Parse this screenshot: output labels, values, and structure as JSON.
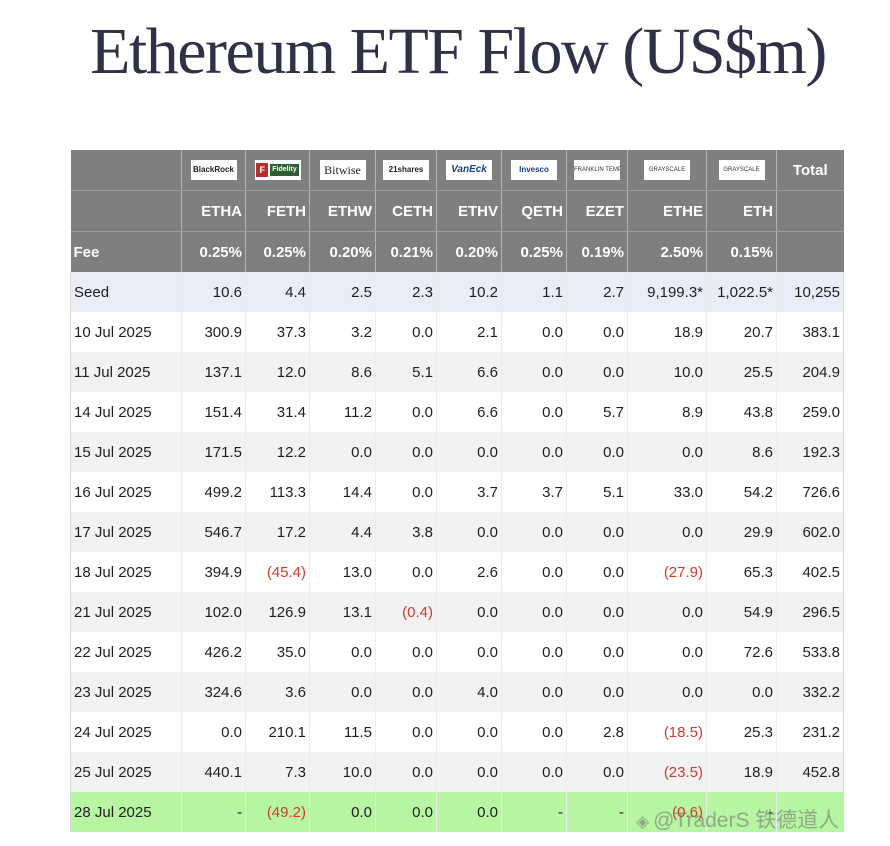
{
  "title": "Ethereum ETF Flow (US$m)",
  "issuers": [
    "BlackRock",
    "Fidelity",
    "Bitwise",
    "21shares",
    "VanEck",
    "Invesco",
    "FRANKLIN TEMPLETON",
    "GRAYSCALE",
    "GRAYSCALE"
  ],
  "total_label": "Total",
  "tickers": [
    "ETHA",
    "FETH",
    "ETHW",
    "CETH",
    "ETHV",
    "QETH",
    "EZET",
    "ETHE",
    "ETH"
  ],
  "fee_label": "Fee",
  "fees": [
    "0.25%",
    "0.25%",
    "0.20%",
    "0.21%",
    "0.20%",
    "0.25%",
    "0.19%",
    "2.50%",
    "0.15%"
  ],
  "rows": [
    {
      "label": "Seed",
      "values": [
        "10.6",
        "4.4",
        "2.5",
        "2.3",
        "10.2",
        "1.1",
        "2.7",
        "9,199.3*",
        "1,022.5*"
      ],
      "total": "10,255"
    },
    {
      "label": "10 Jul 2025",
      "values": [
        "300.9",
        "37.3",
        "3.2",
        "0.0",
        "2.1",
        "0.0",
        "0.0",
        "18.9",
        "20.7"
      ],
      "total": "383.1"
    },
    {
      "label": "11 Jul 2025",
      "values": [
        "137.1",
        "12.0",
        "8.6",
        "5.1",
        "6.6",
        "0.0",
        "0.0",
        "10.0",
        "25.5"
      ],
      "total": "204.9"
    },
    {
      "label": "14 Jul 2025",
      "values": [
        "151.4",
        "31.4",
        "11.2",
        "0.0",
        "6.6",
        "0.0",
        "5.7",
        "8.9",
        "43.8"
      ],
      "total": "259.0"
    },
    {
      "label": "15 Jul 2025",
      "values": [
        "171.5",
        "12.2",
        "0.0",
        "0.0",
        "0.0",
        "0.0",
        "0.0",
        "0.0",
        "8.6"
      ],
      "total": "192.3"
    },
    {
      "label": "16 Jul 2025",
      "values": [
        "499.2",
        "113.3",
        "14.4",
        "0.0",
        "3.7",
        "3.7",
        "5.1",
        "33.0",
        "54.2"
      ],
      "total": "726.6"
    },
    {
      "label": "17 Jul 2025",
      "values": [
        "546.7",
        "17.2",
        "4.4",
        "3.8",
        "0.0",
        "0.0",
        "0.0",
        "0.0",
        "29.9"
      ],
      "total": "602.0"
    },
    {
      "label": "18 Jul 2025",
      "values": [
        "394.9",
        "(45.4)",
        "13.0",
        "0.0",
        "2.6",
        "0.0",
        "0.0",
        "(27.9)",
        "65.3"
      ],
      "total": "402.5"
    },
    {
      "label": "21 Jul 2025",
      "values": [
        "102.0",
        "126.9",
        "13.1",
        "(0.4)",
        "0.0",
        "0.0",
        "0.0",
        "0.0",
        "54.9"
      ],
      "total": "296.5"
    },
    {
      "label": "22 Jul 2025",
      "values": [
        "426.2",
        "35.0",
        "0.0",
        "0.0",
        "0.0",
        "0.0",
        "0.0",
        "0.0",
        "72.6"
      ],
      "total": "533.8"
    },
    {
      "label": "23 Jul 2025",
      "values": [
        "324.6",
        "3.6",
        "0.0",
        "0.0",
        "4.0",
        "0.0",
        "0.0",
        "0.0",
        "0.0"
      ],
      "total": "332.2"
    },
    {
      "label": "24 Jul 2025",
      "values": [
        "0.0",
        "210.1",
        "11.5",
        "0.0",
        "0.0",
        "0.0",
        "2.8",
        "(18.5)",
        "25.3"
      ],
      "total": "231.2"
    },
    {
      "label": "25 Jul 2025",
      "values": [
        "440.1",
        "7.3",
        "10.0",
        "0.0",
        "0.0",
        "0.0",
        "0.0",
        "(23.5)",
        "18.9"
      ],
      "total": "452.8"
    },
    {
      "label": "28 Jul 2025",
      "values": [
        "-",
        "(49.2)",
        "0.0",
        "0.0",
        "0.0",
        "-",
        "-",
        "(0.6)",
        "-"
      ],
      "total": ""
    }
  ],
  "watermark": "@TraderS 铁德道人",
  "colors": {
    "header_bg": "#7f7f7f",
    "seed_row_bg": "#eaedf7",
    "stripe_bg": "#f2f2f2",
    "latest_row_bg": "#b6f5a2",
    "negative_text": "#d33a2c",
    "title_color": "#2f3247"
  }
}
